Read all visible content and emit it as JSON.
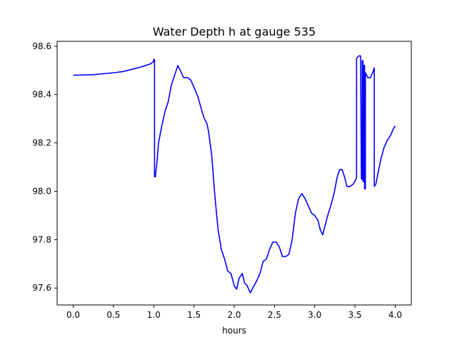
{
  "chart_data": {
    "type": "line",
    "title": "Water Depth h at gauge 535",
    "xlabel": "hours",
    "ylabel": "",
    "xlim": [
      -0.2,
      4.2
    ],
    "ylim": [
      97.53,
      98.62
    ],
    "xticks": [
      0.0,
      0.5,
      1.0,
      1.5,
      2.0,
      2.5,
      3.0,
      3.5,
      4.0
    ],
    "xtick_labels": [
      "0.0",
      "0.5",
      "1.0",
      "1.5",
      "2.0",
      "2.5",
      "3.0",
      "3.5",
      "4.0"
    ],
    "yticks": [
      97.6,
      97.8,
      98.0,
      98.2,
      98.4,
      98.6
    ],
    "ytick_labels": [
      "97.6",
      "97.8",
      "98.0",
      "98.2",
      "98.4",
      "98.6"
    ],
    "grid": false,
    "legend": "none",
    "series": [
      {
        "color": "#0000ff",
        "points": [
          [
            0.0,
            98.48
          ],
          [
            0.25,
            98.482
          ],
          [
            0.5,
            98.49
          ],
          [
            0.62,
            98.495
          ],
          [
            0.7,
            98.502
          ],
          [
            0.8,
            98.51
          ],
          [
            0.9,
            98.52
          ],
          [
            0.96,
            98.527
          ],
          [
            0.99,
            98.535
          ],
          [
            1.0,
            98.535
          ],
          [
            1.0,
            98.545
          ],
          [
            1.01,
            98.545
          ],
          [
            1.01,
            98.06
          ],
          [
            1.02,
            98.06
          ],
          [
            1.04,
            98.12
          ],
          [
            1.06,
            98.2
          ],
          [
            1.1,
            98.27
          ],
          [
            1.14,
            98.33
          ],
          [
            1.18,
            98.37
          ],
          [
            1.22,
            98.44
          ],
          [
            1.26,
            98.48
          ],
          [
            1.3,
            98.52
          ],
          [
            1.33,
            98.5
          ],
          [
            1.37,
            98.47
          ],
          [
            1.42,
            98.47
          ],
          [
            1.46,
            98.46
          ],
          [
            1.5,
            98.43
          ],
          [
            1.55,
            98.39
          ],
          [
            1.6,
            98.33
          ],
          [
            1.63,
            98.3
          ],
          [
            1.66,
            98.28
          ],
          [
            1.68,
            98.25
          ],
          [
            1.72,
            98.15
          ],
          [
            1.76,
            97.98
          ],
          [
            1.8,
            97.84
          ],
          [
            1.84,
            97.76
          ],
          [
            1.88,
            97.72
          ],
          [
            1.92,
            97.67
          ],
          [
            1.96,
            97.66
          ],
          [
            2.0,
            97.61
          ],
          [
            2.03,
            97.595
          ],
          [
            2.06,
            97.64
          ],
          [
            2.1,
            97.66
          ],
          [
            2.13,
            97.62
          ],
          [
            2.16,
            97.61
          ],
          [
            2.2,
            97.58
          ],
          [
            2.23,
            97.6
          ],
          [
            2.28,
            97.63
          ],
          [
            2.32,
            97.66
          ],
          [
            2.36,
            97.71
          ],
          [
            2.4,
            97.72
          ],
          [
            2.44,
            97.76
          ],
          [
            2.48,
            97.79
          ],
          [
            2.52,
            97.79
          ],
          [
            2.56,
            97.77
          ],
          [
            2.6,
            97.73
          ],
          [
            2.64,
            97.73
          ],
          [
            2.68,
            97.74
          ],
          [
            2.72,
            97.8
          ],
          [
            2.76,
            97.91
          ],
          [
            2.8,
            97.97
          ],
          [
            2.84,
            97.99
          ],
          [
            2.88,
            97.97
          ],
          [
            2.92,
            97.94
          ],
          [
            2.96,
            97.91
          ],
          [
            3.0,
            97.9
          ],
          [
            3.04,
            97.88
          ],
          [
            3.07,
            97.84
          ],
          [
            3.1,
            97.82
          ],
          [
            3.13,
            97.86
          ],
          [
            3.17,
            97.91
          ],
          [
            3.2,
            97.94
          ],
          [
            3.24,
            97.99
          ],
          [
            3.28,
            98.06
          ],
          [
            3.31,
            98.09
          ],
          [
            3.34,
            98.09
          ],
          [
            3.37,
            98.06
          ],
          [
            3.4,
            98.02
          ],
          [
            3.44,
            98.02
          ],
          [
            3.48,
            98.03
          ],
          [
            3.52,
            98.055
          ],
          [
            3.52,
            98.55
          ],
          [
            3.55,
            98.56
          ],
          [
            3.57,
            98.56
          ],
          [
            3.58,
            98.05
          ],
          [
            3.59,
            98.05
          ],
          [
            3.59,
            98.54
          ],
          [
            3.6,
            98.54
          ],
          [
            3.6,
            98.04
          ],
          [
            3.61,
            98.04
          ],
          [
            3.61,
            98.52
          ],
          [
            3.62,
            98.52
          ],
          [
            3.62,
            98.01
          ],
          [
            3.63,
            98.01
          ],
          [
            3.63,
            98.49
          ],
          [
            3.66,
            98.47
          ],
          [
            3.69,
            98.47
          ],
          [
            3.72,
            98.49
          ],
          [
            3.74,
            98.51
          ],
          [
            3.74,
            98.02
          ],
          [
            3.76,
            98.03
          ],
          [
            3.79,
            98.08
          ],
          [
            3.82,
            98.13
          ],
          [
            3.86,
            98.18
          ],
          [
            3.9,
            98.21
          ],
          [
            3.94,
            98.23
          ],
          [
            3.98,
            98.26
          ],
          [
            4.0,
            98.27
          ]
        ]
      }
    ]
  }
}
